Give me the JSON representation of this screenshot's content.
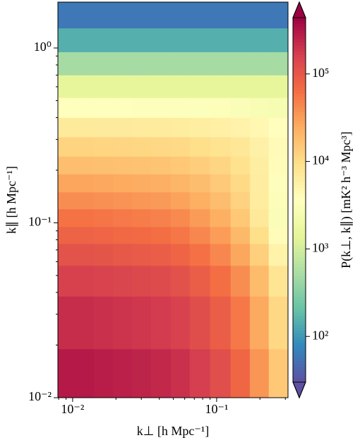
{
  "chart_data": {
    "type": "heatmap",
    "xscale": "log",
    "yscale": "log",
    "xlabel": "k⊥ [h Mpc⁻¹]",
    "ylabel": "k∥ [h Mpc⁻¹]",
    "xlim": [
      0.0079,
      0.313
    ],
    "ylim": [
      0.01,
      1.83
    ],
    "xticks": [
      {
        "value": 0.01,
        "label": "10⁻²"
      },
      {
        "value": 0.1,
        "label": "10⁻¹"
      }
    ],
    "yticks": [
      {
        "value": 0.01,
        "label": "10⁻²"
      },
      {
        "value": 0.1,
        "label": "10⁻¹"
      },
      {
        "value": 1,
        "label": "10⁰"
      }
    ],
    "xminorticks": [
      0.008,
      0.009,
      0.02,
      0.03,
      0.04,
      0.05,
      0.06,
      0.07,
      0.08,
      0.09,
      0.2,
      0.3
    ],
    "yminorticks": [
      0.02,
      0.03,
      0.04,
      0.05,
      0.06,
      0.07,
      0.08,
      0.09,
      0.2,
      0.3,
      0.4,
      0.5,
      0.6,
      0.7,
      0.8,
      0.9
    ],
    "x_edges": [
      0.0079,
      0.0105,
      0.014,
      0.019,
      0.026,
      0.035,
      0.048,
      0.065,
      0.09,
      0.125,
      0.17,
      0.23,
      0.313
    ],
    "y_edges": [
      0.01,
      0.019,
      0.038,
      0.057,
      0.076,
      0.095,
      0.12,
      0.15,
      0.19,
      0.24,
      0.31,
      0.4,
      0.52,
      0.7,
      0.95,
      1.3,
      1.83
    ],
    "values": [
      [
        300000,
        300000,
        285000,
        270000,
        255000,
        240000,
        210000,
        165000,
        120000,
        75000,
        36000,
        15000
      ],
      [
        220000,
        220000,
        209000,
        198000,
        187000,
        176000,
        154000,
        121000,
        88000,
        55000,
        26400,
        11000
      ],
      [
        160000,
        160000,
        152000,
        144000,
        136000,
        128000,
        112000,
        88000,
        64000,
        40000,
        19200,
        8000
      ],
      [
        110000,
        110000,
        104500,
        99000,
        93500,
        88000,
        77000,
        60500,
        44000,
        27500,
        13200,
        5500
      ],
      [
        80000,
        80000,
        76000,
        72000,
        68000,
        64000,
        56000,
        44000,
        32000,
        20000,
        9600,
        4000
      ],
      [
        60000,
        60000,
        57000,
        54000,
        51000,
        48000,
        42000,
        33000,
        24000,
        15000,
        7200,
        3000
      ],
      [
        40000,
        40000,
        38300,
        36600,
        34800,
        33100,
        29600,
        24100,
        18400,
        12300,
        6600,
        3100
      ],
      [
        28000,
        28000,
        27000,
        26000,
        25000,
        23900,
        21800,
        18400,
        14800,
        10600,
        6400,
        3400
      ],
      [
        18000,
        18000,
        17500,
        17100,
        16600,
        16100,
        15100,
        13400,
        11400,
        9000,
        6200,
        4000
      ],
      [
        12000,
        12000,
        11800,
        11600,
        11300,
        11100,
        10600,
        9700,
        8700,
        7400,
        5700,
        4200
      ],
      [
        7000,
        7000,
        6900,
        6900,
        6800,
        6700,
        6500,
        6200,
        5800,
        5300,
        4600,
        3800
      ],
      [
        3500,
        3500,
        3500,
        3500,
        3400,
        3400,
        3400,
        3300,
        3200,
        3000,
        2800,
        2600
      ],
      [
        1500,
        1500,
        1500,
        1500,
        1500,
        1500,
        1500,
        1500,
        1500,
        1500,
        1500,
        1500
      ],
      [
        500,
        500,
        500,
        500,
        500,
        500,
        500,
        500,
        500,
        500,
        500,
        500
      ],
      [
        150,
        150,
        150,
        150,
        150,
        150,
        150,
        150,
        150,
        150,
        150,
        150
      ],
      [
        60,
        60,
        60,
        60,
        60,
        60,
        60,
        60,
        60,
        60,
        60,
        60
      ]
    ],
    "colormap": [
      "#5e4fa2",
      "#3288bd",
      "#66c2a5",
      "#abdda4",
      "#e6f598",
      "#ffffbf",
      "#fee08b",
      "#fdae61",
      "#f46d43",
      "#d53e4f",
      "#9e0142"
    ],
    "colorbar": {
      "label": "P(k⊥, k∥) [mK² h⁻³ Mpc³]",
      "scale": "log",
      "extend": "both",
      "lim": [
        30,
        440000
      ],
      "ticks": [
        {
          "value": 100,
          "label": "10²"
        },
        {
          "value": 1000,
          "label": "10³"
        },
        {
          "value": 10000,
          "label": "10⁴"
        },
        {
          "value": 100000,
          "label": "10⁵"
        }
      ]
    }
  }
}
